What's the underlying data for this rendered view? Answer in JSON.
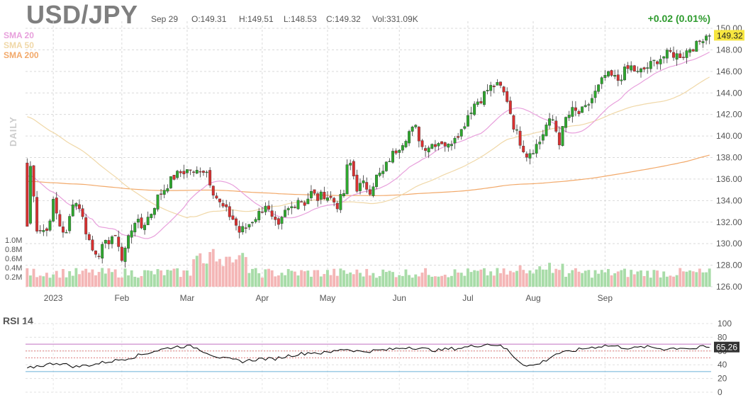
{
  "header": {
    "symbol": "USD/JPY",
    "date": "Sep 29",
    "open": "O:149.31",
    "high": "H:149.51",
    "low": "L:148.53",
    "close": "C:149.32",
    "volume": "Vol:331.09K",
    "change": "+0.02 (0.01%)",
    "change_color": "#2e9b2e"
  },
  "legend": {
    "sma20": {
      "label": "SMA 20",
      "color": "#e8a0dc"
    },
    "sma50": {
      "label": "SMA 50",
      "color": "#f0d8a8"
    },
    "sma200": {
      "label": "SMA 200",
      "color": "#f2a96a"
    }
  },
  "side_labels": {
    "period": "DAILY",
    "volume_ticks": [
      "1.0M",
      "0.8M",
      "0.6M",
      "0.4M",
      "0.2M"
    ]
  },
  "rsi_panel": {
    "title": "RSI 14",
    "last_value": "65.26",
    "overbought": 70,
    "oversold": 30,
    "ticks": [
      "100",
      "80",
      "60",
      "40",
      "20",
      "0"
    ]
  },
  "chart_data": {
    "type": "candlestick",
    "title": "USD/JPY",
    "y_ticks": [
      "150.00",
      "148.00",
      "146.00",
      "144.00",
      "142.00",
      "140.00",
      "138.00",
      "136.00",
      "134.00",
      "132.00",
      "130.00",
      "128.00",
      "126.00"
    ],
    "ylim": [
      126,
      150
    ],
    "last_price_label": "149.32",
    "x_tick_labels": [
      "2023",
      "Feb",
      "Mar",
      "Apr",
      "May",
      "Jun",
      "Jul",
      "Aug",
      "Sep"
    ],
    "close_anchors": [
      [
        0,
        132.0
      ],
      [
        1,
        137.2
      ],
      [
        3,
        131.5
      ],
      [
        6,
        131.2
      ],
      [
        8,
        133.8
      ],
      [
        10,
        131.7
      ],
      [
        12,
        130.8
      ],
      [
        14,
        134.0
      ],
      [
        16,
        133.5
      ],
      [
        18,
        131.2
      ],
      [
        20,
        129.4
      ],
      [
        22,
        129.2
      ],
      [
        24,
        129.9
      ],
      [
        26,
        130.7
      ],
      [
        28,
        130.0
      ],
      [
        29,
        128.5
      ],
      [
        31,
        130.6
      ],
      [
        33,
        132.2
      ],
      [
        35,
        131.5
      ],
      [
        38,
        132.9
      ],
      [
        40,
        134.3
      ],
      [
        43,
        135.5
      ],
      [
        45,
        136.2
      ],
      [
        47,
        136.6
      ],
      [
        50,
        136.9
      ],
      [
        51,
        136.4
      ],
      [
        53,
        137.0
      ],
      [
        55,
        136.7
      ],
      [
        57,
        134.9
      ],
      [
        59,
        133.7
      ],
      [
        61,
        133.0
      ],
      [
        63,
        132.3
      ],
      [
        65,
        131.1
      ],
      [
        67,
        131.5
      ],
      [
        69,
        132.2
      ],
      [
        71,
        132.8
      ],
      [
        73,
        133.7
      ],
      [
        75,
        132.2
      ],
      [
        77,
        131.4
      ],
      [
        79,
        132.9
      ],
      [
        81,
        133.4
      ],
      [
        83,
        134.2
      ],
      [
        85,
        133.8
      ],
      [
        87,
        134.7
      ],
      [
        89,
        134.2
      ],
      [
        91,
        134.6
      ],
      [
        93,
        134.2
      ],
      [
        95,
        133.6
      ],
      [
        97,
        134.7
      ],
      [
        98,
        137.0
      ],
      [
        99,
        137.4
      ],
      [
        101,
        135.2
      ],
      [
        103,
        135.5
      ],
      [
        105,
        135.0
      ],
      [
        107,
        136.2
      ],
      [
        109,
        136.6
      ],
      [
        111,
        137.9
      ],
      [
        113,
        138.7
      ],
      [
        115,
        139.5
      ],
      [
        117,
        140.4
      ],
      [
        119,
        140.7
      ],
      [
        121,
        139.0
      ],
      [
        123,
        139.1
      ],
      [
        125,
        139.4
      ],
      [
        127,
        139.5
      ],
      [
        129,
        139.0
      ],
      [
        131,
        140.1
      ],
      [
        133,
        140.5
      ],
      [
        135,
        142.0
      ],
      [
        137,
        143.0
      ],
      [
        139,
        143.5
      ],
      [
        141,
        144.3
      ],
      [
        143,
        144.7
      ],
      [
        145,
        144.5
      ],
      [
        147,
        143.4
      ],
      [
        149,
        141.0
      ],
      [
        151,
        139.5
      ],
      [
        153,
        138.3
      ],
      [
        155,
        138.8
      ],
      [
        157,
        139.5
      ],
      [
        159,
        141.0
      ],
      [
        161,
        141.5
      ],
      [
        163,
        139.5
      ],
      [
        165,
        141.6
      ],
      [
        167,
        142.3
      ],
      [
        169,
        142.1
      ],
      [
        171,
        142.5
      ],
      [
        173,
        143.5
      ],
      [
        175,
        144.5
      ],
      [
        177,
        145.6
      ],
      [
        179,
        145.5
      ],
      [
        181,
        145.2
      ],
      [
        183,
        146.0
      ],
      [
        185,
        146.4
      ],
      [
        187,
        145.8
      ],
      [
        189,
        146.2
      ],
      [
        191,
        146.6
      ],
      [
        193,
        147.1
      ],
      [
        195,
        147.4
      ],
      [
        197,
        147.7
      ],
      [
        199,
        147.5
      ],
      [
        201,
        147.6
      ],
      [
        203,
        148.2
      ],
      [
        205,
        148.4
      ],
      [
        207,
        149.2
      ],
      [
        208,
        149.4
      ],
      [
        209,
        149.32
      ]
    ],
    "volume_range_M": [
      0.1,
      1.0
    ],
    "rsi_anchors": [
      [
        0,
        34
      ],
      [
        3,
        38
      ],
      [
        6,
        40
      ],
      [
        9,
        43
      ],
      [
        12,
        40
      ],
      [
        15,
        37
      ],
      [
        18,
        39
      ],
      [
        21,
        41
      ],
      [
        24,
        44
      ],
      [
        27,
        46
      ],
      [
        30,
        49
      ],
      [
        33,
        52
      ],
      [
        36,
        56
      ],
      [
        39,
        60
      ],
      [
        42,
        63
      ],
      [
        45,
        66
      ],
      [
        48,
        67
      ],
      [
        51,
        66
      ],
      [
        54,
        60
      ],
      [
        57,
        54
      ],
      [
        60,
        49
      ],
      [
        63,
        47
      ],
      [
        66,
        45
      ],
      [
        69,
        47
      ],
      [
        72,
        49
      ],
      [
        75,
        48
      ],
      [
        78,
        51
      ],
      [
        81,
        54
      ],
      [
        84,
        56
      ],
      [
        87,
        58
      ],
      [
        90,
        57
      ],
      [
        93,
        58
      ],
      [
        96,
        63
      ],
      [
        99,
        62
      ],
      [
        102,
        59
      ],
      [
        105,
        60
      ],
      [
        108,
        61
      ],
      [
        111,
        62
      ],
      [
        114,
        64
      ],
      [
        117,
        66
      ],
      [
        120,
        64
      ],
      [
        123,
        62
      ],
      [
        126,
        61
      ],
      [
        129,
        63
      ],
      [
        132,
        64
      ],
      [
        135,
        66
      ],
      [
        138,
        68
      ],
      [
        141,
        70
      ],
      [
        144,
        69
      ],
      [
        147,
        62
      ],
      [
        150,
        48
      ],
      [
        153,
        38
      ],
      [
        156,
        40
      ],
      [
        159,
        47
      ],
      [
        162,
        56
      ],
      [
        165,
        58
      ],
      [
        168,
        61
      ],
      [
        171,
        64
      ],
      [
        174,
        66
      ],
      [
        177,
        68
      ],
      [
        180,
        67
      ],
      [
        183,
        65
      ],
      [
        186,
        64
      ],
      [
        189,
        66
      ],
      [
        192,
        65
      ],
      [
        195,
        63
      ],
      [
        198,
        64
      ],
      [
        201,
        65
      ],
      [
        204,
        63
      ],
      [
        207,
        66
      ],
      [
        209,
        65.26
      ]
    ]
  }
}
